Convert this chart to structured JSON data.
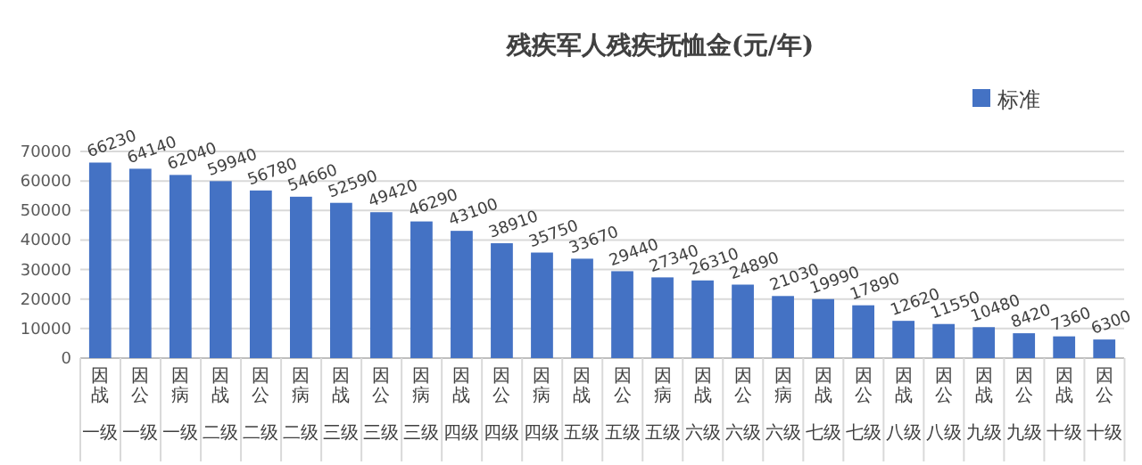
{
  "chart_data": {
    "type": "bar",
    "title": "残疾军人残疾抚恤金(元/年)",
    "categories": [
      "因战一级",
      "因公一级",
      "因病一级",
      "因战二级",
      "因公二级",
      "因病二级",
      "因战三级",
      "因公三级",
      "因病三级",
      "因战四级",
      "因公四级",
      "因病四级",
      "因战五级",
      "因公五级",
      "因病五级",
      "因战六级",
      "因公六级",
      "因病六级",
      "因战七级",
      "因公七级",
      "因战八级",
      "因公八级",
      "因战九级",
      "因公九级",
      "因战十级",
      "因公十级"
    ],
    "series": [
      {
        "name": "标准",
        "color": "#4472c4",
        "values": [
          66230,
          64140,
          62040,
          59940,
          56780,
          54660,
          52590,
          49420,
          46290,
          43100,
          38910,
          35750,
          33670,
          29440,
          27340,
          26310,
          24890,
          21030,
          19990,
          17890,
          12620,
          11550,
          10480,
          8420,
          7360,
          6300
        ]
      }
    ],
    "ylim": [
      0,
      70000
    ],
    "yticks": [
      0,
      10000,
      20000,
      30000,
      40000,
      50000,
      60000,
      70000
    ],
    "grid": "y",
    "legend": "top right",
    "data_labels": true
  }
}
